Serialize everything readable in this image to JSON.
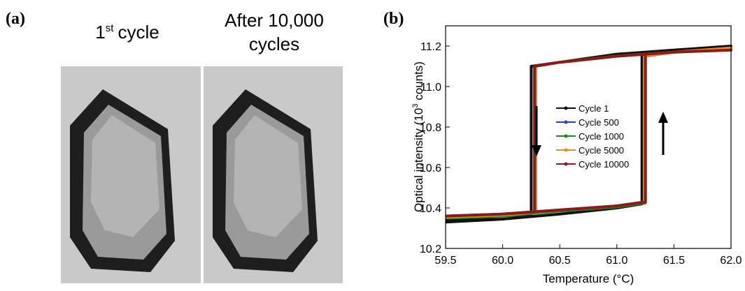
{
  "panel_a": {
    "label": "(a)",
    "caption_left": {
      "number": "1",
      "superscript": "st",
      "text": "cycle"
    },
    "caption_right": [
      "After 10,000",
      "cycles"
    ]
  },
  "chart_data": {
    "type": "line",
    "label": "(b)",
    "xlabel": "Temperature (°C)",
    "ylabel": [
      "Optical intensity (10",
      "3",
      " counts)"
    ],
    "xlim": [
      59.5,
      62.0
    ],
    "ylim": [
      10.2,
      11.3
    ],
    "xticks": [
      59.5,
      {
        "value": 60,
        "label": "60.0"
      },
      60.5,
      {
        "value": 61,
        "label": "61.0"
      },
      61.5,
      {
        "value": 62,
        "label": "62.0"
      }
    ],
    "yticks": [
      10.2,
      10.4,
      10.6,
      10.8,
      {
        "value": 11,
        "label": "11.0"
      },
      11.2
    ],
    "legend": "center",
    "series": [
      {
        "name": "Cycle 1",
        "color": "#111111",
        "x": [
          59.5,
          60.0,
          60.5,
          61.0,
          61.22,
          61.22,
          61.5,
          62.0,
          61.5,
          61.0,
          60.5,
          60.25,
          60.25,
          60.0,
          59.5
        ],
        "values": [
          10.33,
          10.345,
          10.37,
          10.4,
          10.42,
          11.15,
          11.17,
          11.2,
          11.18,
          11.16,
          11.12,
          11.1,
          10.37,
          10.36,
          10.34
        ]
      },
      {
        "name": "Cycle 500",
        "color": "#1f3fd6",
        "x": [
          59.5,
          60.0,
          60.5,
          61.0,
          61.25,
          61.25,
          61.5,
          62.0,
          61.5,
          61.0,
          60.5,
          60.28,
          60.28,
          60.0,
          59.5
        ],
        "values": [
          10.36,
          10.37,
          10.39,
          10.41,
          10.43,
          11.15,
          11.17,
          11.19,
          11.17,
          11.15,
          11.12,
          11.1,
          10.38,
          10.37,
          10.36
        ]
      },
      {
        "name": "Cycle 1000",
        "color": "#1a8a1a",
        "x": [
          59.5,
          60.0,
          60.5,
          61.0,
          61.25,
          61.25,
          61.5,
          62.0,
          61.5,
          61.0,
          60.5,
          60.28,
          60.28,
          60.0,
          59.5
        ],
        "values": [
          10.35,
          10.36,
          10.385,
          10.405,
          10.425,
          11.15,
          11.17,
          11.19,
          11.17,
          11.15,
          11.12,
          11.1,
          10.38,
          10.365,
          10.35
        ]
      },
      {
        "name": "Cycle 5000",
        "color": "#f08a1a",
        "x": [
          59.5,
          60.0,
          60.5,
          61.0,
          61.24,
          61.24,
          61.5,
          62.0,
          61.5,
          61.0,
          60.5,
          60.29,
          60.29,
          60.0,
          59.5
        ],
        "values": [
          10.355,
          10.365,
          10.39,
          10.41,
          10.43,
          11.15,
          11.17,
          11.19,
          11.17,
          11.15,
          11.12,
          11.1,
          10.38,
          10.37,
          10.355
        ]
      },
      {
        "name": "Cycle 10000",
        "color": "#8b1a1a",
        "x": [
          59.5,
          60.0,
          60.5,
          61.0,
          61.25,
          61.25,
          61.5,
          62.0,
          61.5,
          61.0,
          60.5,
          60.28,
          60.28,
          60.0,
          59.5
        ],
        "values": [
          10.36,
          10.37,
          10.39,
          10.41,
          10.43,
          11.16,
          11.17,
          11.18,
          11.17,
          11.15,
          11.12,
          11.1,
          10.38,
          10.37,
          10.36
        ]
      }
    ]
  }
}
